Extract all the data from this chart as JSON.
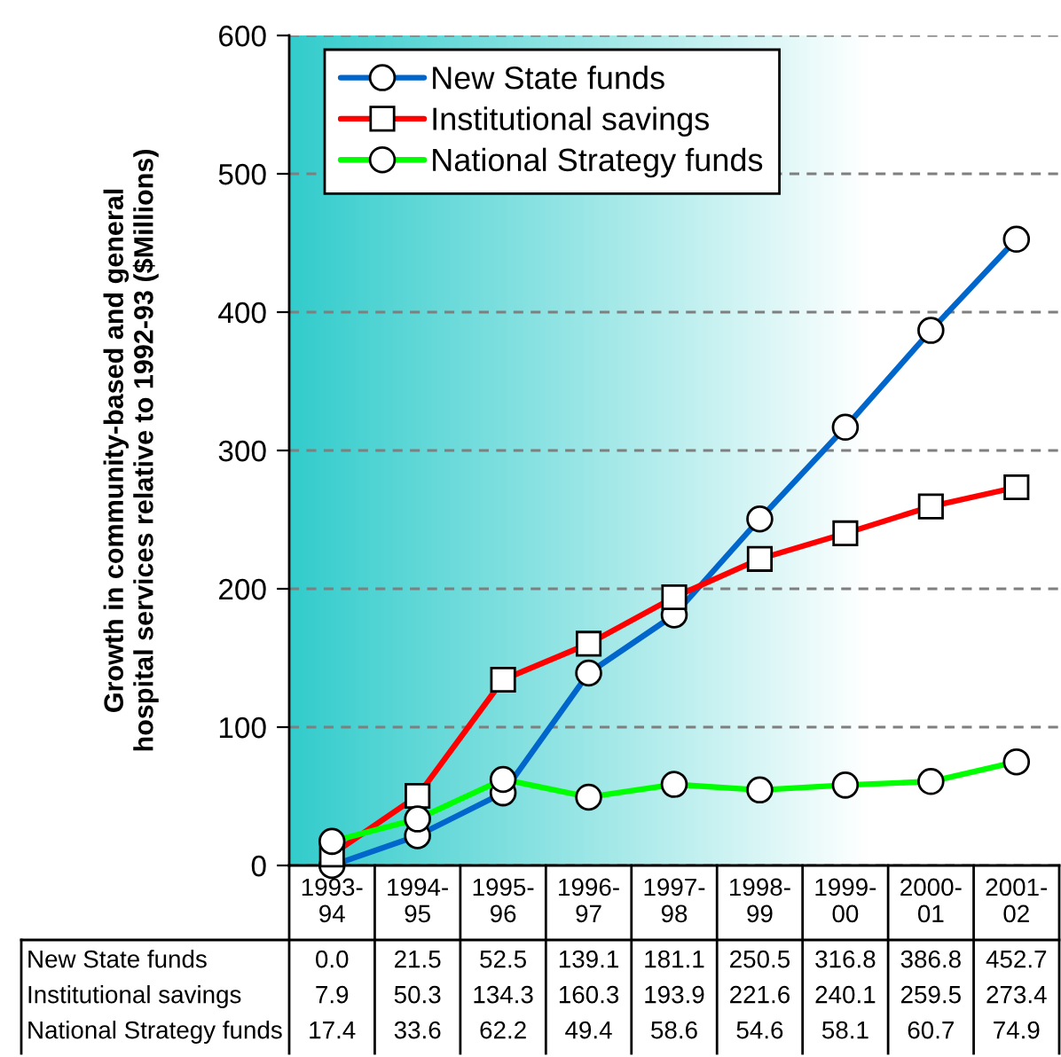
{
  "chart_data": {
    "type": "line",
    "ylabel": "Growth in community-based and general\nhospital services relative to 1992-93 ($Millions)",
    "categories": [
      "1993-\n94",
      "1994-\n95",
      "1995-\n96",
      "1996-\n97",
      "1997-\n98",
      "1998-\n99",
      "1999-\n00",
      "2000-\n01",
      "2001-\n02"
    ],
    "series": [
      {
        "name": "New State funds",
        "color": "#0066cc",
        "marker": "circle",
        "values": [
          0.0,
          21.5,
          52.5,
          139.1,
          181.1,
          250.5,
          316.8,
          386.8,
          452.7
        ],
        "value_labels": [
          "0.0",
          "21.5",
          "52.5",
          "139.1",
          "181.1",
          "250.5",
          "316.8",
          "386.8",
          "452.7"
        ]
      },
      {
        "name": "Institutional savings",
        "color": "#ff0000",
        "marker": "square",
        "values": [
          7.9,
          50.3,
          134.3,
          160.3,
          193.9,
          221.6,
          240.1,
          259.5,
          273.4
        ],
        "value_labels": [
          "7.9",
          "50.3",
          "134.3",
          "160.3",
          "193.9",
          "221.6",
          "240.1",
          "259.5",
          "273.4"
        ]
      },
      {
        "name": "National Strategy funds",
        "color": "#00ff00",
        "marker": "circle",
        "values": [
          17.4,
          33.6,
          62.2,
          49.4,
          58.6,
          54.6,
          58.1,
          60.7,
          74.9
        ],
        "value_labels": [
          "17.4",
          "33.6",
          "62.2",
          "49.4",
          "58.6",
          "54.6",
          "58.1",
          "60.7",
          "74.9"
        ]
      }
    ],
    "ylim": [
      0,
      600
    ],
    "yticks": [
      0,
      100,
      200,
      300,
      400,
      500,
      600
    ],
    "grid": "y",
    "legend": "top left"
  }
}
